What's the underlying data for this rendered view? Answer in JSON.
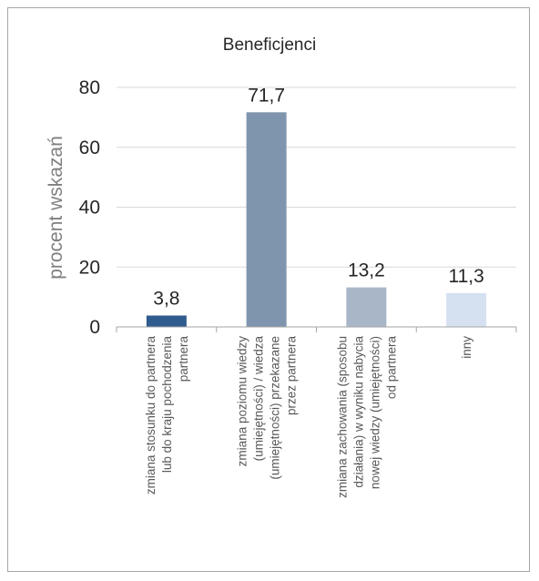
{
  "chart_data": {
    "type": "bar",
    "title": "Beneficjenci",
    "ylabel": "procent wskazań",
    "ylim": [
      0,
      80
    ],
    "yticks": [
      "0",
      "20",
      "40",
      "60",
      "80"
    ],
    "categories": [
      [
        "zmiana stosunku do partnera",
        "lub do kraju pochodzenia",
        "partnera"
      ],
      [
        "zmiana poziomu wiedzy",
        "(umiejętności) / wiedza",
        "(umiejętności) przekazane",
        "przez partnera"
      ],
      [
        "zmiana zachowania (sposobu",
        "działania) w wyniku nabycia",
        "nowej wiedzy (umiejętności)",
        "od partnera"
      ],
      [
        "inny"
      ]
    ],
    "values": [
      3.8,
      71.7,
      13.2,
      11.3
    ],
    "value_labels": [
      "3,8",
      "71,7",
      "13,2",
      "11,3"
    ],
    "colors": [
      "#2f5b8e",
      "#7f95ae",
      "#a9b6c8",
      "#d5e1f1"
    ],
    "grid": true,
    "legend": "none"
  }
}
